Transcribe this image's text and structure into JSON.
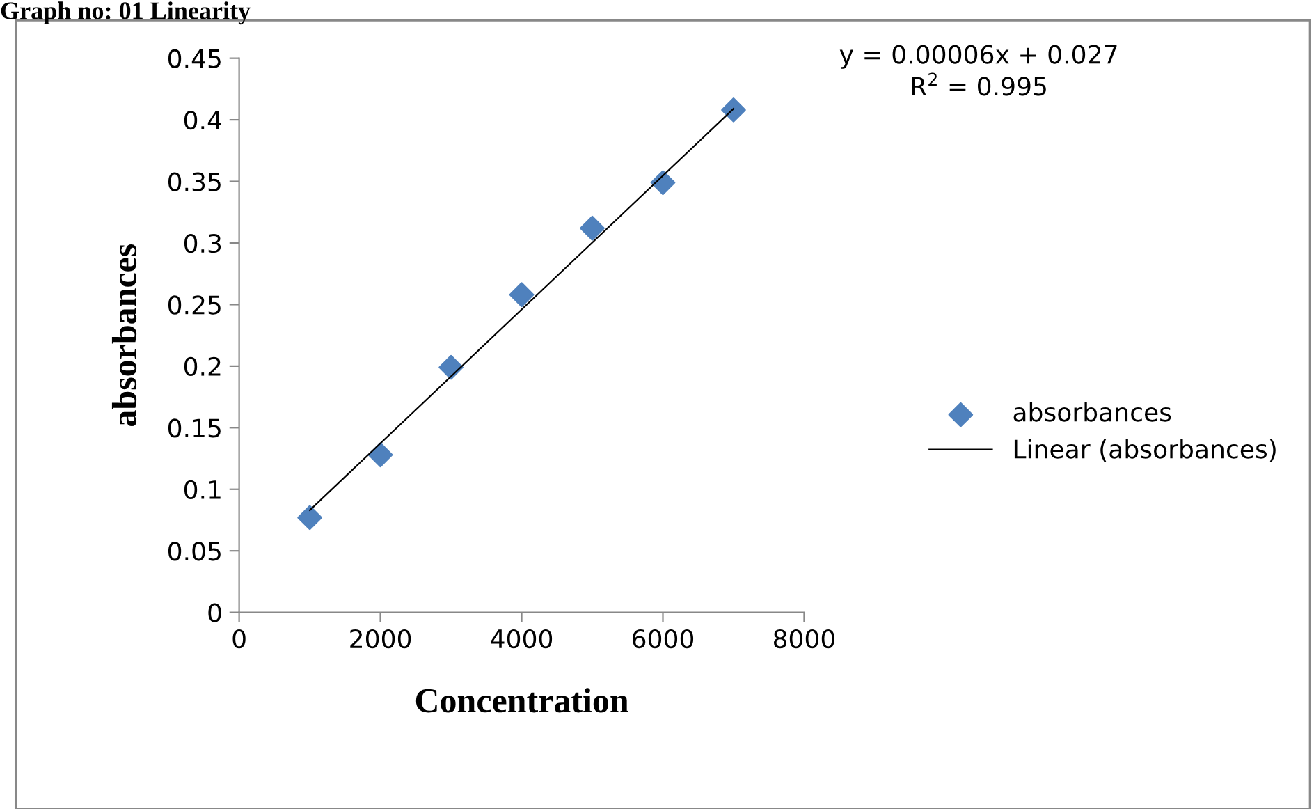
{
  "chart_data": {
    "type": "scatter",
    "title": "Graph no: 01 Linearity",
    "xlabel": "Concentration",
    "ylabel": "absorbances",
    "x": [
      1000,
      2000,
      3000,
      4000,
      5000,
      6000,
      7000
    ],
    "series": [
      {
        "name": "absorbances",
        "color": "#4f81bd",
        "values": [
          0.077,
          0.128,
          0.199,
          0.258,
          0.312,
          0.349,
          0.408
        ],
        "marker": "diamond"
      },
      {
        "name": "Linear (absorbances)",
        "type": "line",
        "color": "#000000",
        "x": [
          1000,
          7000
        ],
        "values": [
          0.083,
          0.409
        ],
        "marker": "none"
      }
    ],
    "annotations": [
      "y = 0.00006x + 0.027\nR$^{2}$ = 0.995"
    ],
    "xlim": [
      0,
      8000
    ],
    "xticks": [
      0,
      2000,
      4000,
      6000,
      8000
    ],
    "ylim": [
      0,
      0.45
    ],
    "yticks": [
      0,
      0.05,
      0.1,
      0.15,
      0.2,
      0.25,
      0.3,
      0.35,
      0.4,
      0.45
    ],
    "grid": false,
    "legend": "right"
  }
}
